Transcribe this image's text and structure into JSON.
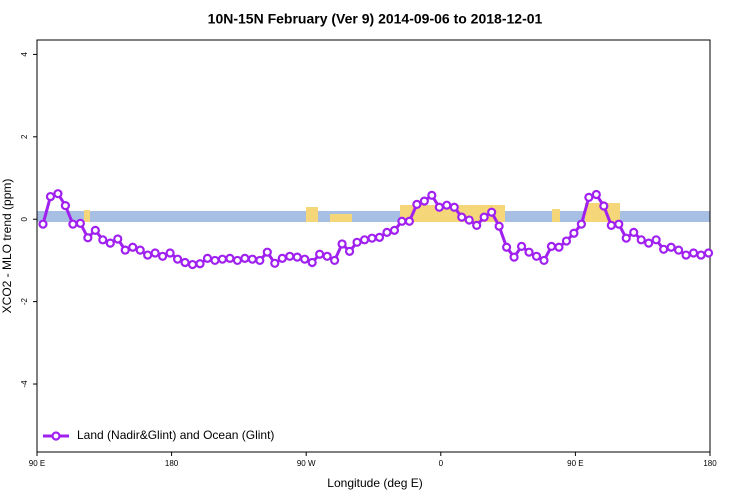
{
  "chart_data": {
    "type": "line",
    "title": "10N-15N February (Ver 9)   2014-09-06 to 2018-12-01",
    "xlabel": "Longitude (deg E)",
    "ylabel": "XCO2 - MLO trend (ppm)",
    "xlim": [
      90,
      540
    ],
    "ylim": [
      -5.65,
      4.35
    ],
    "xticks": [
      {
        "value": 90,
        "label": "90 E"
      },
      180,
      {
        "value": 270,
        "label": "90 W"
      },
      {
        "value": 360,
        "label": "0"
      },
      {
        "value": 450,
        "label": "90 E"
      },
      {
        "value": 540,
        "label": "180"
      }
    ],
    "yticks": [
      -4,
      -2,
      0,
      2,
      4
    ],
    "legend": "lower left",
    "x": [
      94,
      99,
      104,
      109,
      114,
      119,
      124,
      129,
      134,
      139,
      144,
      149,
      154,
      159,
      164,
      169,
      174,
      179,
      184,
      189,
      194,
      199,
      204,
      209,
      214,
      219,
      224,
      229,
      234,
      239,
      244,
      249,
      254,
      259,
      264,
      269,
      274,
      279,
      284,
      289,
      294,
      299,
      304,
      309,
      314,
      319,
      324,
      329,
      334,
      339,
      344,
      349,
      354,
      359,
      364,
      369,
      374,
      379,
      384,
      389,
      394,
      399,
      404,
      409,
      414,
      419,
      424,
      429,
      434,
      439,
      444,
      449,
      454,
      459,
      464,
      469,
      474,
      479,
      484,
      489,
      494,
      499,
      504,
      509,
      514,
      519,
      524,
      529,
      534,
      539
    ],
    "series": [
      {
        "name": "Land (Nadir&Glint) and Ocean (Glint)",
        "color": "#a020f0",
        "values": [
          -0.12,
          0.55,
          0.62,
          0.33,
          -0.12,
          -0.1,
          -0.45,
          -0.27,
          -0.5,
          -0.58,
          -0.48,
          -0.75,
          -0.68,
          -0.75,
          -0.87,
          -0.82,
          -0.9,
          -0.82,
          -0.97,
          -1.05,
          -1.1,
          -1.08,
          -0.95,
          -1.0,
          -0.97,
          -0.95,
          -1.0,
          -0.95,
          -0.97,
          -1.0,
          -0.8,
          -1.07,
          -0.95,
          -0.9,
          -0.92,
          -0.97,
          -1.05,
          -0.85,
          -0.9,
          -1.0,
          -0.6,
          -0.78,
          -0.56,
          -0.5,
          -0.46,
          -0.44,
          -0.32,
          -0.27,
          -0.05,
          -0.05,
          0.36,
          0.44,
          0.58,
          0.29,
          0.34,
          0.29,
          0.05,
          -0.02,
          -0.15,
          0.05,
          0.17,
          -0.17,
          -0.68,
          -0.92,
          -0.66,
          -0.8,
          -0.9,
          -1.0,
          -0.66,
          -0.68,
          -0.53,
          -0.34,
          -0.12,
          0.53,
          0.6,
          0.32,
          -0.15,
          -0.12,
          -0.46,
          -0.32,
          -0.5,
          -0.58,
          -0.5,
          -0.73,
          -0.68,
          -0.75,
          -0.87,
          -0.82,
          -0.87,
          -0.82
        ]
      }
    ]
  }
}
